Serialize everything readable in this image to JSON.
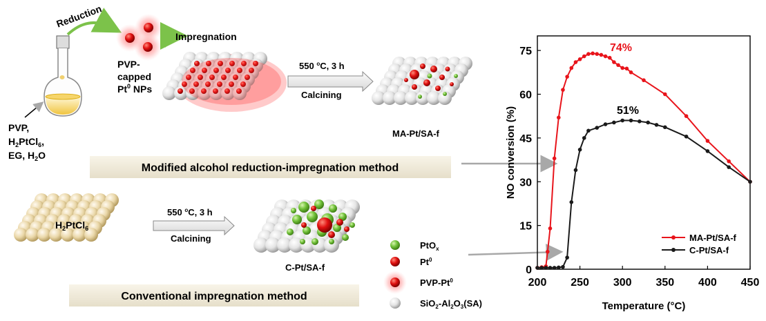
{
  "scheme": {
    "reduction": "Reduction",
    "impregnation": "Impregnation",
    "pvp_capped": [
      "PVP-",
      "capped"
    ],
    "pt_nps_base": "Pt",
    "pt_nps_sup": "0",
    "pt_nps_tail": " NPs",
    "reagents": {
      "line1": "PVP,",
      "line2_a": "H",
      "line2_sub1": "2",
      "line2_b": "PtCl",
      "line2_sub2": "6",
      "line2_c": ",",
      "line3_a": "EG, H",
      "line3_sub": "2",
      "line3_b": "O"
    },
    "step1": {
      "cond_a": "550 ",
      "cond_sup": "o",
      "cond_b": "C, 3 h",
      "action": "Calcining",
      "product": "MA-Pt/SA-f"
    },
    "step2": {
      "cond_a": "550 ",
      "cond_sup": "o",
      "cond_b": "C, 3 h",
      "action": "Calcining",
      "product": "C-Pt/SA-f"
    },
    "precursor_a": "H",
    "precursor_sub1": "2",
    "precursor_b": "PtCl",
    "precursor_sub2": "6",
    "method1": "Modified alcohol reduction-impregnation method",
    "method2": "Conventional impregnation method",
    "legend": {
      "ptox_base": "PtO",
      "ptox_sub": "x",
      "pt0_base": "Pt",
      "pt0_sup": "0",
      "pvp_pt0_base": "PVP-Pt",
      "pvp_pt0_sup": "0",
      "sa_a": "SiO",
      "sa_sub1": "2",
      "sa_b": "-Al",
      "sa_sub2": "2",
      "sa_c": "O",
      "sa_sub3": "3",
      "sa_d": "(SA)"
    }
  },
  "chart_data": {
    "type": "line",
    "title": "",
    "xlabel": "Temperature (°C)",
    "ylabel": "NO conversion (%)",
    "xlim": [
      200,
      450
    ],
    "ylim": [
      0,
      80
    ],
    "xticks": [
      200,
      250,
      300,
      350,
      400,
      450
    ],
    "yticks": [
      0,
      15,
      30,
      45,
      60,
      75
    ],
    "legend_position": "bottom-right",
    "series": [
      {
        "name": "MA-Pt/SA-f",
        "color": "#e8141b",
        "peak_label": "74%",
        "x": [
          200,
          205,
          210,
          212,
          215,
          220,
          225,
          230,
          235,
          240,
          245,
          250,
          255,
          260,
          265,
          270,
          275,
          280,
          285,
          290,
          295,
          300,
          305,
          310,
          325,
          350,
          375,
          400,
          425,
          450
        ],
        "y": [
          0.5,
          0.7,
          1.0,
          6.0,
          14.0,
          38.0,
          52.0,
          61.5,
          66.0,
          69.0,
          71.0,
          72.0,
          73.0,
          73.8,
          74.0,
          73.8,
          73.5,
          73.0,
          72.5,
          71.0,
          70.0,
          69.0,
          68.8,
          67.5,
          64.8,
          60.0,
          52.5,
          44.0,
          37.0,
          30.0
        ]
      },
      {
        "name": "C-Pt/SA-f",
        "color": "#1a1a1a",
        "peak_label": "51%",
        "x": [
          200,
          205,
          210,
          215,
          220,
          225,
          230,
          235,
          240,
          245,
          250,
          255,
          260,
          270,
          280,
          290,
          300,
          310,
          320,
          330,
          340,
          350,
          375,
          400,
          425,
          450
        ],
        "y": [
          0.5,
          0.5,
          0.5,
          0.5,
          0.5,
          0.6,
          0.8,
          4.0,
          23.0,
          34.0,
          41.0,
          45.0,
          47.5,
          48.5,
          49.7,
          50.3,
          51.0,
          51.0,
          50.7,
          50.3,
          49.5,
          48.7,
          45.5,
          40.5,
          35.0,
          30.0
        ]
      }
    ]
  }
}
